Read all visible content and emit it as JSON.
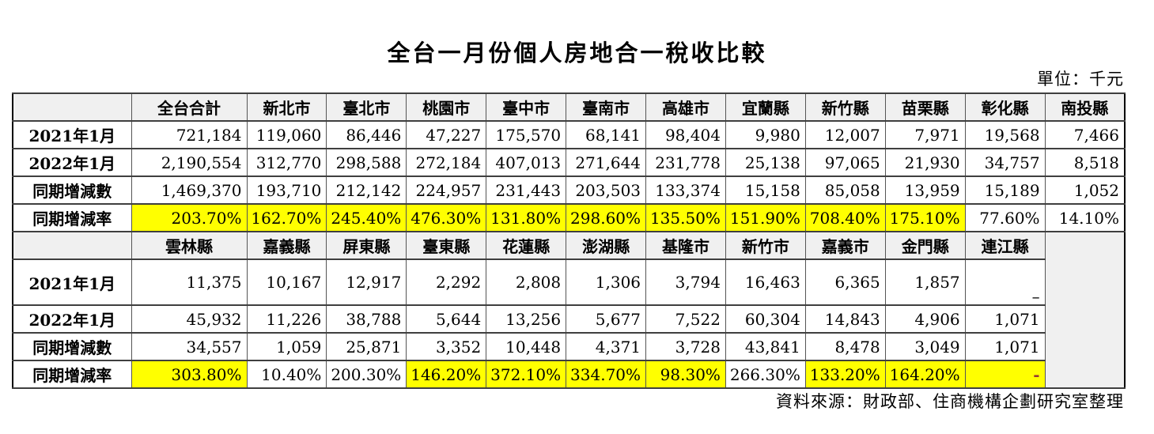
{
  "title": "全台一月份個人房地合一稅收比較",
  "unit_label": "單位：千元",
  "source_label": "資料來源：財政部、住商機構企劃研究室整理",
  "colors": {
    "highlight_yellow": "#ffff00",
    "header_bg": "#f0f0f0",
    "filler_bg": "#f0f0f0",
    "dash_red": "#953735",
    "grid_line": "#3f3f3f"
  },
  "table": {
    "sections": [
      {
        "columns": [
          "全台合計",
          "新北市",
          "臺北市",
          "桃園市",
          "臺中市",
          "臺南市",
          "高雄市",
          "宜蘭縣",
          "新竹縣",
          "苗栗縣",
          "彰化縣",
          "南投縣"
        ],
        "filler": false,
        "rows": [
          {
            "label": "2021年1月",
            "values": [
              "721,184",
              "119,060",
              "86,446",
              "47,227",
              "175,570",
              "68,141",
              "98,404",
              "9,980",
              "12,007",
              "7,971",
              "19,568",
              "7,466"
            ]
          },
          {
            "label": "2022年1月",
            "values": [
              "2,190,554",
              "312,770",
              "298,588",
              "272,184",
              "407,013",
              "271,644",
              "231,778",
              "25,138",
              "97,065",
              "21,930",
              "34,757",
              "8,518"
            ]
          },
          {
            "label": "同期增減數",
            "values": [
              "1,469,370",
              "193,710",
              "212,142",
              "224,957",
              "231,443",
              "203,503",
              "133,374",
              "15,158",
              "85,058",
              "13,959",
              "15,189",
              "1,052"
            ]
          },
          {
            "label": "同期增減率",
            "values": [
              "203.70%",
              "162.70%",
              "245.40%",
              "476.30%",
              "131.80%",
              "298.60%",
              "135.50%",
              "151.90%",
              "708.40%",
              "175.10%",
              "77.60%",
              "14.10%"
            ],
            "yellow": [
              0,
              1,
              2,
              3,
              4,
              5,
              6,
              7,
              8,
              9
            ]
          }
        ]
      },
      {
        "columns": [
          "雲林縣",
          "嘉義縣",
          "屏東縣",
          "臺東縣",
          "花蓮縣",
          "澎湖縣",
          "基隆市",
          "新竹市",
          "嘉義市",
          "金門縣",
          "連江縣"
        ],
        "filler": true,
        "rows": [
          {
            "label": "2021年1月",
            "tall": true,
            "values": [
              "11,375",
              "10,167",
              "12,917",
              "2,292",
              "2,808",
              "1,306",
              "3,794",
              "16,463",
              "6,365",
              "1,857",
              "–"
            ],
            "special": {
              "10": "dash-bottom"
            }
          },
          {
            "label": "2022年1月",
            "values": [
              "45,932",
              "11,226",
              "38,788",
              "5,644",
              "13,256",
              "5,677",
              "7,522",
              "60,304",
              "14,843",
              "4,906",
              "1,071"
            ]
          },
          {
            "label": "同期增減數",
            "values": [
              "34,557",
              "1,059",
              "25,871",
              "3,352",
              "10,448",
              "4,371",
              "3,728",
              "43,841",
              "8,478",
              "3,049",
              "1,071"
            ]
          },
          {
            "label": "同期增減率",
            "values": [
              "303.80%",
              "10.40%",
              "200.30%",
              "146.20%",
              "372.10%",
              "334.70%",
              "98.30%",
              "266.30%",
              "133.20%",
              "164.20%",
              "-"
            ],
            "yellow": [
              0,
              3,
              4,
              5,
              6,
              8,
              9,
              10
            ],
            "special": {
              "10": "dash-red"
            }
          }
        ]
      }
    ]
  }
}
